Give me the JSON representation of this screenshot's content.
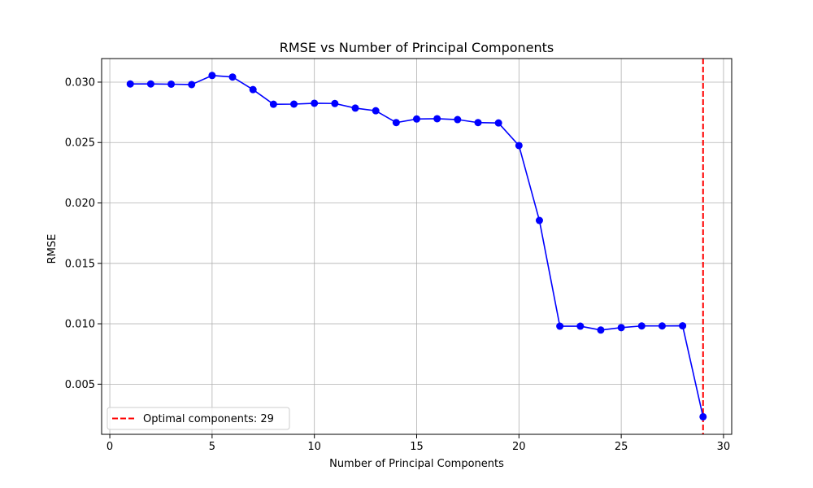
{
  "chart_data": {
    "type": "line",
    "title": "RMSE vs Number of Principal Components",
    "xlabel": "Number of Principal Components",
    "ylabel": "RMSE",
    "xlim": [
      -0.4,
      30.4
    ],
    "ylim": [
      0.00085,
      0.03195
    ],
    "xticks": [
      0,
      5,
      10,
      15,
      20,
      25,
      30
    ],
    "xtick_labels": [
      "0",
      "5",
      "10",
      "15",
      "20",
      "25",
      "30"
    ],
    "yticks": [
      0.005,
      0.01,
      0.015,
      0.02,
      0.025,
      0.03
    ],
    "ytick_labels": [
      "0.005",
      "0.010",
      "0.015",
      "0.020",
      "0.025",
      "0.030"
    ],
    "grid": true,
    "series": [
      {
        "color": "#0000ff",
        "marker": "circle",
        "x": [
          1,
          2,
          3,
          4,
          5,
          6,
          7,
          8,
          9,
          10,
          11,
          12,
          13,
          14,
          15,
          16,
          17,
          18,
          19,
          20,
          21,
          22,
          23,
          24,
          25,
          26,
          27,
          28,
          29
        ],
        "y": [
          0.02985,
          0.02985,
          0.02983,
          0.0298,
          0.03055,
          0.03042,
          0.02938,
          0.02817,
          0.02818,
          0.02825,
          0.02823,
          0.02785,
          0.02763,
          0.02665,
          0.02695,
          0.02697,
          0.0269,
          0.02665,
          0.02662,
          0.02475,
          0.01855,
          0.0098,
          0.0098,
          0.00948,
          0.00968,
          0.00982,
          0.00982,
          0.00983,
          0.0023
        ]
      }
    ],
    "vline": {
      "x": 29,
      "color": "#ff0000",
      "style": "dashed",
      "label": "Optimal components: 29"
    },
    "legend": {
      "position": "lower-left",
      "entries": [
        "Optimal components: 29"
      ]
    }
  }
}
